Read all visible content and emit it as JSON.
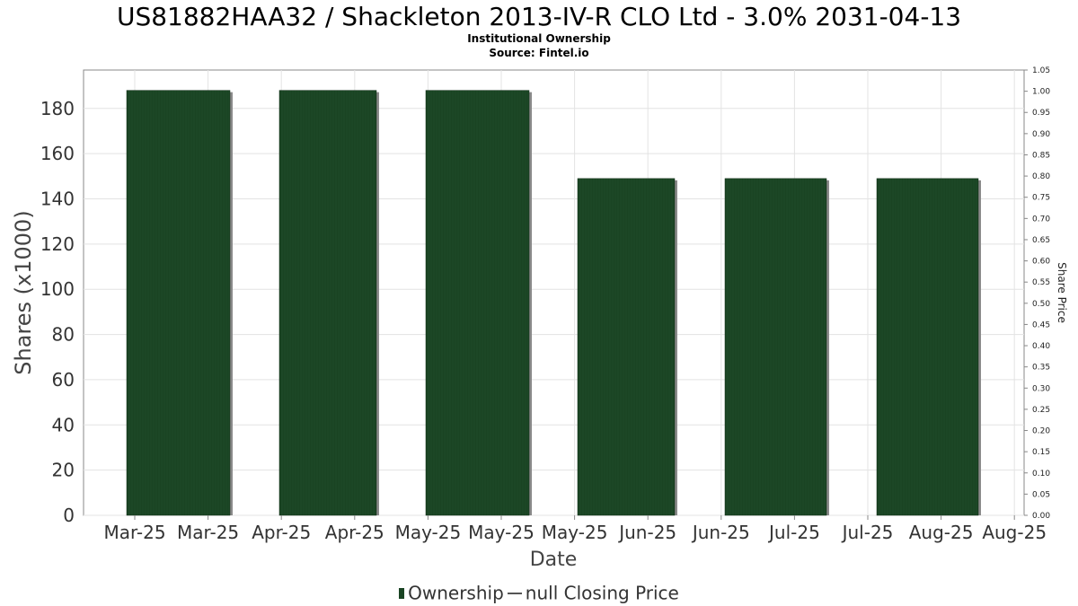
{
  "page": {
    "title": "US81882HAA32 / Shackleton 2013-IV-R CLO Ltd - 3.0% 2031-04-13",
    "subtitle": "Institutional Ownership",
    "source": "Source: Fintel.io"
  },
  "colors": {
    "bar": "#1a4423",
    "bar_shadow": "#8a8a8a",
    "grid": "#e3e3e3",
    "axis": "#888888"
  },
  "chart_data": {
    "type": "bar",
    "xlabel": "Date",
    "ylabel": "Shares (x1000)",
    "y2label": "Share Price",
    "ylim": [
      0,
      197
    ],
    "y2lim": [
      0,
      1.05
    ],
    "yticks": [
      0,
      20,
      40,
      60,
      80,
      100,
      120,
      140,
      160,
      180
    ],
    "y2ticks": [
      "0.00",
      "0.05",
      "0.10",
      "0.15",
      "0.20",
      "0.25",
      "0.30",
      "0.35",
      "0.40",
      "0.45",
      "0.50",
      "0.55",
      "0.60",
      "0.65",
      "0.70",
      "0.75",
      "0.80",
      "0.85",
      "0.90",
      "0.95",
      "1.00",
      "1.05"
    ],
    "xticks": [
      "Mar-25",
      "Mar-25",
      "Apr-25",
      "Apr-25",
      "May-25",
      "May-25",
      "May-25",
      "Jun-25",
      "Jun-25",
      "Jul-25",
      "Jul-25",
      "Aug-25",
      "Aug-25"
    ],
    "series": [
      {
        "name": "Ownership",
        "values": [
          188,
          188,
          188,
          149,
          149,
          149
        ]
      },
      {
        "name": "null Closing Price",
        "values": []
      }
    ],
    "grid": true,
    "legend": "bottom-center"
  }
}
